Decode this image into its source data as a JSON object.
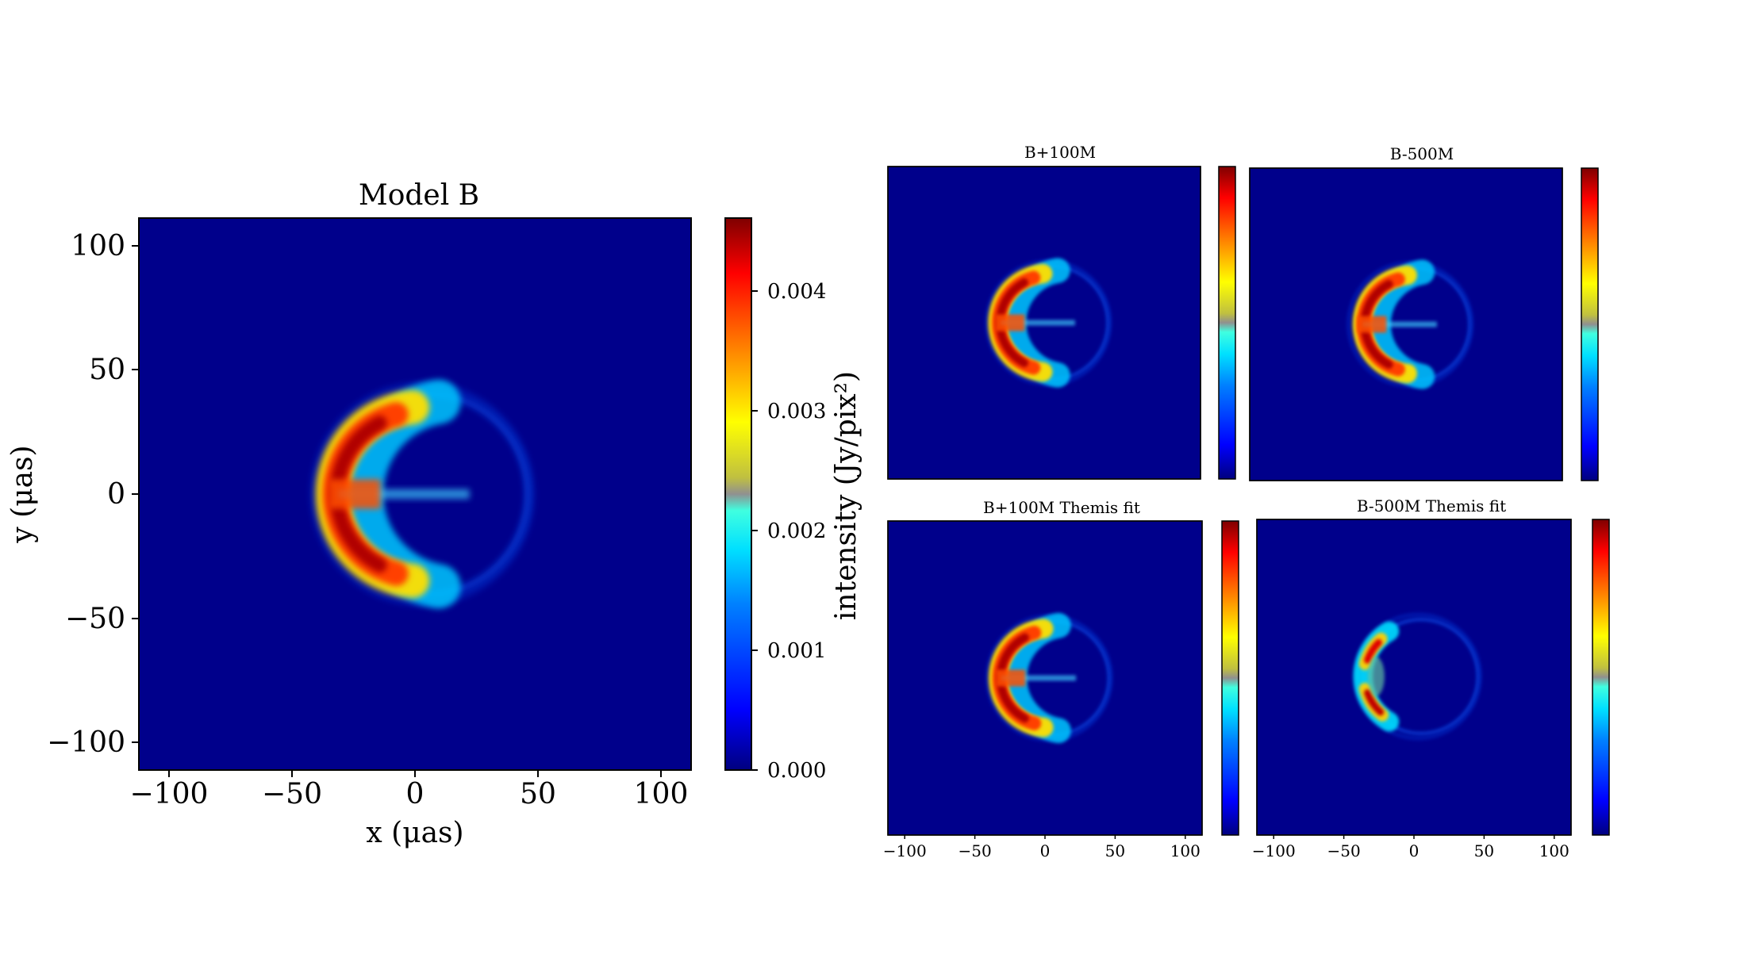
{
  "chart_data": [
    {
      "type": "heatmap",
      "title": "Model B",
      "xlabel": "x (μas)",
      "ylabel": "y (μas)",
      "xlim": [
        -112,
        112
      ],
      "ylim": [
        -112,
        112
      ],
      "x_ticks": [
        -100,
        -50,
        0,
        50,
        100
      ],
      "y_ticks": [
        -100,
        -50,
        0,
        50,
        100
      ],
      "x_tick_labels": [
        "−100",
        "−50",
        "0",
        "50",
        "100"
      ],
      "y_tick_labels": [
        "−100",
        "−50",
        "0",
        "50",
        "100"
      ],
      "colorbar": {
        "colormap": "jet",
        "range": [
          0.0,
          0.0046
        ],
        "ticks": [
          0.0,
          0.001,
          0.002,
          0.003,
          0.004
        ],
        "tick_labels": [
          "0.000",
          "0.001",
          "0.002",
          "0.003",
          "0.004"
        ]
      },
      "crescent": {
        "center": [
          5,
          0
        ],
        "radius": 38,
        "bright_side": "left",
        "peak_x": -22
      }
    },
    {
      "type": "heatmap",
      "title": "B+100M",
      "colormap": "jet",
      "crescent": {
        "center": [
          5,
          0
        ],
        "radius": 38,
        "bright_side": "left"
      }
    },
    {
      "type": "heatmap",
      "title": "B-500M",
      "colormap": "jet",
      "crescent": {
        "center": [
          5,
          0
        ],
        "radius": 38,
        "bright_side": "left"
      }
    },
    {
      "type": "heatmap",
      "title": "B+100M Themis fit",
      "colormap": "jet",
      "crescent": {
        "center": [
          5,
          0
        ],
        "radius": 38,
        "bright_side": "left"
      },
      "x_ticks": [
        -100,
        -50,
        0,
        50,
        100
      ],
      "x_tick_labels": [
        "−100",
        "−50",
        "0",
        "50",
        "100"
      ]
    },
    {
      "type": "heatmap",
      "title": "B-500M Themis fit",
      "colormap": "jet",
      "crescent": {
        "center": [
          5,
          0
        ],
        "radius": 38,
        "bright_side": "left"
      },
      "x_ticks": [
        -100,
        -50,
        0,
        50,
        100
      ],
      "x_tick_labels": [
        "−100",
        "−50",
        "0",
        "50",
        "100"
      ]
    }
  ],
  "shared_colorbar_label": "intensity (Jy/pix²)",
  "colors": {
    "background_low": "#00008b",
    "jet_stops": [
      "#00007f",
      "#0000ff",
      "#007fff",
      "#00ffff",
      "#7fff7f",
      "#ffff00",
      "#ff7f00",
      "#ff0000",
      "#7f0000"
    ]
  }
}
